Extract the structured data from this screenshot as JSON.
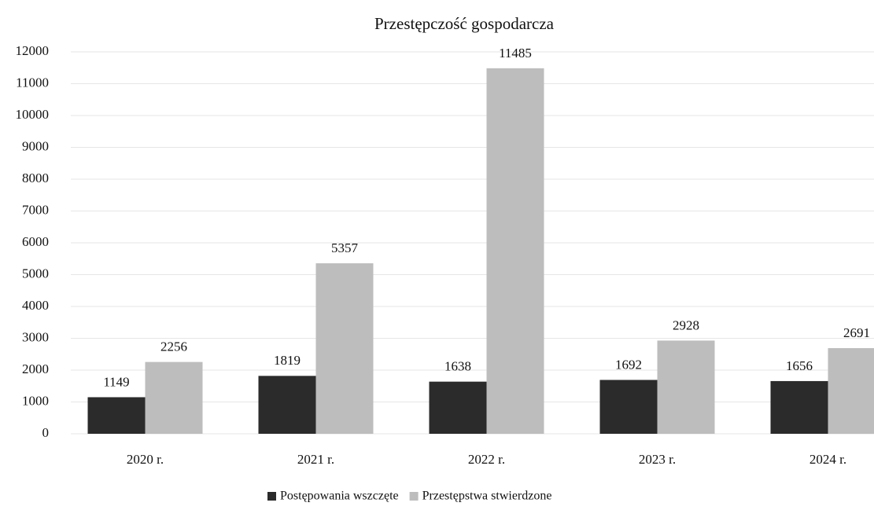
{
  "chart_data": {
    "type": "bar",
    "title": "Przestępczość gospodarcza",
    "categories": [
      "2020 r.",
      "2021 r.",
      "2022 r.",
      "2023 r.",
      "2024 r."
    ],
    "series": [
      {
        "name": "Postępowania wszczęte",
        "color": "#2b2b2b",
        "values": [
          1149,
          1819,
          1638,
          1692,
          1656
        ]
      },
      {
        "name": "Przestępstwa stwierdzone",
        "color": "#bdbdbd",
        "values": [
          2256,
          5357,
          11485,
          2928,
          2691
        ]
      }
    ],
    "ylim": [
      0,
      12000
    ],
    "yticks": [
      0,
      1000,
      2000,
      3000,
      4000,
      5000,
      6000,
      7000,
      8000,
      9000,
      10000,
      11000,
      12000
    ],
    "grid": true,
    "legend": "bottom"
  }
}
